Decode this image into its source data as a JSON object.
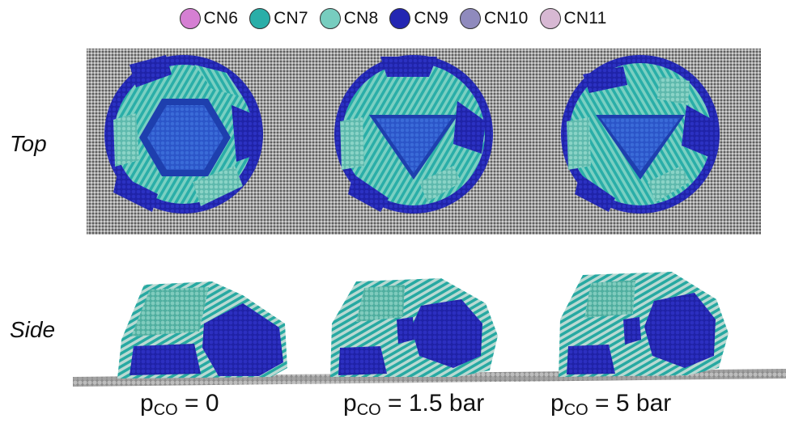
{
  "legend": [
    {
      "label": "CN6",
      "color": "#d57fd3"
    },
    {
      "label": "CN7",
      "color": "#2aaea8"
    },
    {
      "label": "CN8",
      "color": "#77cdbf"
    },
    {
      "label": "CN9",
      "color": "#2326b2"
    },
    {
      "label": "CN10",
      "color": "#8f8abd"
    },
    {
      "label": "CN11",
      "color": "#d7b8d3"
    }
  ],
  "rows": {
    "top": "Top",
    "side": "Side"
  },
  "conditions": [
    {
      "p": "p",
      "sub": "CO",
      "value": " = 0"
    },
    {
      "p": "p",
      "sub": "CO",
      "value": " = 1.5 bar"
    },
    {
      "p": "p",
      "sub": "CO",
      "value": " = 5 bar"
    }
  ]
}
